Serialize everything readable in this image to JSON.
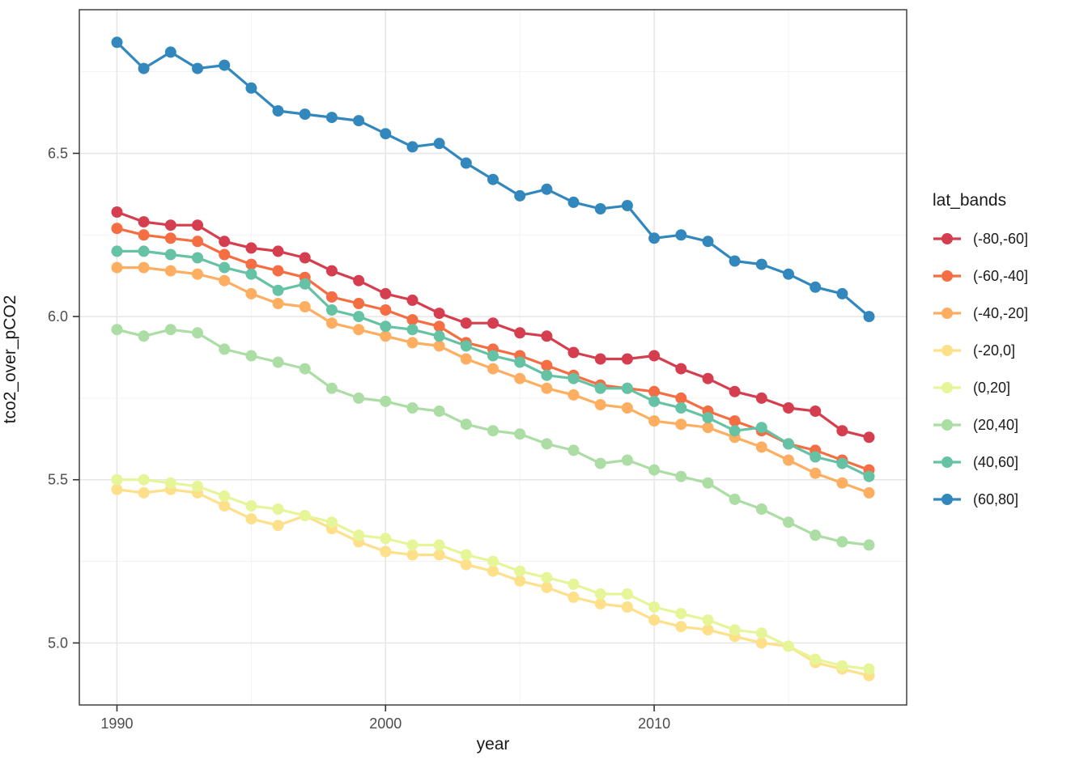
{
  "chart_data": {
    "type": "line",
    "title": "",
    "xlabel": "year",
    "ylabel": "tco2_over_pCO2",
    "legend_title": "lat_bands",
    "legend_position": "right",
    "grid": true,
    "background": "#ffffff",
    "panel_border_color": "#333333",
    "major_grid_color": "#e6e6e6",
    "minor_grid_color": "#f2f2f2",
    "tick_label_color": "#4d4d4d",
    "xlim": [
      1988.6,
      2019.4
    ],
    "ylim": [
      4.81,
      6.94
    ],
    "x_major_ticks": [
      1990,
      2000,
      2010
    ],
    "x_minor_ticks": [
      1995,
      2005,
      2015
    ],
    "x_tick_labels": [
      "1990",
      "2000",
      "2010"
    ],
    "y_major_ticks": [
      5.0,
      5.5,
      6.0,
      6.5
    ],
    "y_minor_ticks": [
      5.25,
      5.75,
      6.25,
      6.75
    ],
    "y_tick_labels": [
      "5.0",
      "5.5",
      "6.0",
      "6.5"
    ],
    "x": [
      1990,
      1991,
      1992,
      1993,
      1994,
      1995,
      1996,
      1997,
      1998,
      1999,
      2000,
      2001,
      2002,
      2003,
      2004,
      2005,
      2006,
      2007,
      2008,
      2009,
      2010,
      2011,
      2012,
      2013,
      2014,
      2015,
      2016,
      2017,
      2018
    ],
    "series": [
      {
        "name": "(-80,-60]",
        "color": "#d53e4f",
        "values": [
          6.32,
          6.29,
          6.28,
          6.28,
          6.23,
          6.21,
          6.2,
          6.18,
          6.14,
          6.11,
          6.07,
          6.05,
          6.01,
          5.98,
          5.98,
          5.95,
          5.94,
          5.89,
          5.87,
          5.87,
          5.88,
          5.84,
          5.81,
          5.77,
          5.75,
          5.72,
          5.71,
          5.65,
          5.63
        ]
      },
      {
        "name": "(-60,-40]",
        "color": "#f46d43",
        "values": [
          6.27,
          6.25,
          6.24,
          6.23,
          6.19,
          6.16,
          6.14,
          6.12,
          6.06,
          6.04,
          6.02,
          5.99,
          5.97,
          5.92,
          5.9,
          5.88,
          5.85,
          5.82,
          5.79,
          5.78,
          5.77,
          5.75,
          5.71,
          5.68,
          5.65,
          5.61,
          5.59,
          5.56,
          5.53
        ]
      },
      {
        "name": "(-40,-20]",
        "color": "#fdae61",
        "values": [
          6.15,
          6.15,
          6.14,
          6.13,
          6.11,
          6.07,
          6.04,
          6.03,
          5.98,
          5.96,
          5.94,
          5.92,
          5.91,
          5.87,
          5.84,
          5.81,
          5.78,
          5.76,
          5.73,
          5.72,
          5.68,
          5.67,
          5.66,
          5.63,
          5.6,
          5.56,
          5.52,
          5.49,
          5.46
        ]
      },
      {
        "name": "(-20,0]",
        "color": "#fee08b",
        "values": [
          5.47,
          5.46,
          5.47,
          5.46,
          5.42,
          5.38,
          5.36,
          5.39,
          5.35,
          5.31,
          5.28,
          5.27,
          5.27,
          5.24,
          5.22,
          5.19,
          5.17,
          5.14,
          5.12,
          5.11,
          5.07,
          5.05,
          5.04,
          5.02,
          5.0,
          4.99,
          4.94,
          4.92,
          4.9
        ]
      },
      {
        "name": "(0,20]",
        "color": "#e6f598",
        "values": [
          5.5,
          5.5,
          5.49,
          5.48,
          5.45,
          5.42,
          5.41,
          5.39,
          5.37,
          5.33,
          5.32,
          5.3,
          5.3,
          5.27,
          5.25,
          5.22,
          5.2,
          5.18,
          5.15,
          5.15,
          5.11,
          5.09,
          5.07,
          5.04,
          5.03,
          4.99,
          4.95,
          4.93,
          4.92
        ]
      },
      {
        "name": "(20,40]",
        "color": "#abdda4",
        "values": [
          5.96,
          5.94,
          5.96,
          5.95,
          5.9,
          5.88,
          5.86,
          5.84,
          5.78,
          5.75,
          5.74,
          5.72,
          5.71,
          5.67,
          5.65,
          5.64,
          5.61,
          5.59,
          5.55,
          5.56,
          5.53,
          5.51,
          5.49,
          5.44,
          5.41,
          5.37,
          5.33,
          5.31,
          5.3
        ]
      },
      {
        "name": "(40,60]",
        "color": "#66c2a5",
        "values": [
          6.2,
          6.2,
          6.19,
          6.18,
          6.15,
          6.13,
          6.08,
          6.1,
          6.02,
          6.0,
          5.97,
          5.96,
          5.94,
          5.91,
          5.88,
          5.86,
          5.82,
          5.81,
          5.78,
          5.78,
          5.74,
          5.72,
          5.69,
          5.65,
          5.66,
          5.61,
          5.57,
          5.55,
          5.51
        ]
      },
      {
        "name": "(60,80]",
        "color": "#3288bd",
        "values": [
          6.84,
          6.76,
          6.81,
          6.76,
          6.77,
          6.7,
          6.63,
          6.62,
          6.61,
          6.6,
          6.56,
          6.52,
          6.53,
          6.47,
          6.42,
          6.37,
          6.39,
          6.35,
          6.33,
          6.34,
          6.24,
          6.25,
          6.23,
          6.17,
          6.16,
          6.13,
          6.09,
          6.07,
          6.0
        ]
      }
    ]
  }
}
